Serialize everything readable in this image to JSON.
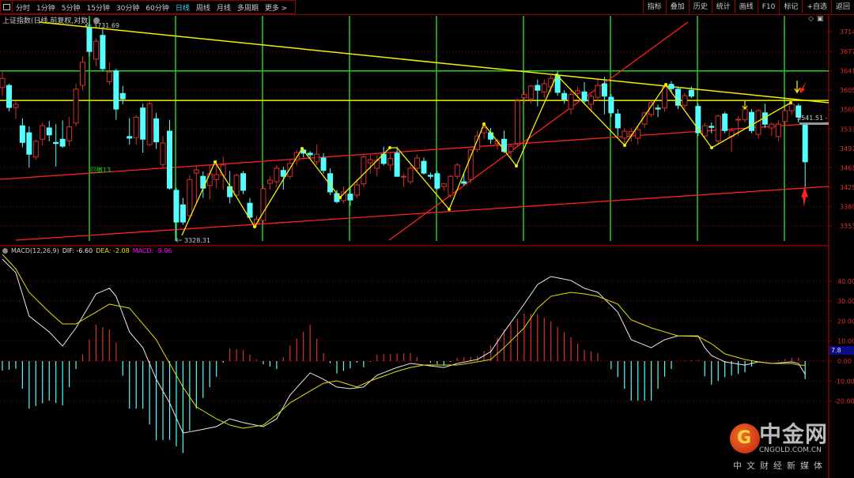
{
  "toolbar": {
    "tabs": [
      {
        "label": "分时"
      },
      {
        "label": "1分钟"
      },
      {
        "label": "5分钟"
      },
      {
        "label": "15分钟"
      },
      {
        "label": "30分钟"
      },
      {
        "label": "60分钟"
      },
      {
        "label": "日线",
        "active": true
      },
      {
        "label": "周线"
      },
      {
        "label": "月线"
      },
      {
        "label": "多周期"
      },
      {
        "label": "更多 >"
      }
    ],
    "right_buttons": [
      {
        "label": "指标"
      },
      {
        "label": "叠加"
      },
      {
        "label": "历史"
      },
      {
        "label": "统计"
      },
      {
        "label": "画线"
      },
      {
        "label": "F10"
      },
      {
        "label": "标记"
      },
      {
        "label": "+自选"
      },
      {
        "label": "返回"
      }
    ]
  },
  "chart_title": "上证指数(日线,前复权,对数)",
  "colors": {
    "up": "#d83030",
    "down": "#54ffff",
    "dif": "#e8e8e8",
    "dea": "#e0e000",
    "macd": "#ff00ff",
    "grid": "#8b0000",
    "annotation_green": "#22cc22",
    "annotation_yellow": "#f0f000",
    "annotation_red": "#ff2020"
  },
  "price_axis": {
    "ticks": [
      3714,
      3677,
      3641,
      3605,
      3569,
      3533,
      3497,
      3461,
      3425,
      3389,
      3353
    ],
    "range": [
      3714,
      3353
    ]
  },
  "macd_axis": {
    "ticks": [
      "40.00",
      "30.00",
      "20.00",
      "10.00",
      "0.00",
      "-10.00",
      "-20.00"
    ],
    "cursor_value": "7.8"
  },
  "annotations": {
    "high_label": "3731.69",
    "low_label": "3328.31",
    "retrace_label": "回撤13",
    "last_label": "3541.51 -",
    "green_level": 3641,
    "yellow_level": 3586
  },
  "macd": {
    "params": "MACD(12,26,9)",
    "dif_label": "DIF: -6.60",
    "dea_label": "DEA: -2.08",
    "macd_label": "MACD: -9.06"
  },
  "watermark": {
    "brand": "中金网",
    "url": "CNGOLD.COM.CN",
    "tagline": "中文财经新媒体"
  },
  "chart_data": {
    "type": "candlestick",
    "ohlc_order": [
      "open",
      "high",
      "low",
      "close"
    ],
    "candles": [
      [
        3610,
        3639,
        3595,
        3627
      ],
      [
        3614,
        3617,
        3566,
        3573
      ],
      [
        3573,
        3584,
        3552,
        3579
      ],
      [
        3539,
        3553,
        3499,
        3508
      ],
      [
        3526,
        3538,
        3461,
        3486
      ],
      [
        3481,
        3513,
        3476,
        3510
      ],
      [
        3514,
        3545,
        3502,
        3539
      ],
      [
        3535,
        3548,
        3510,
        3522
      ],
      [
        3508,
        3542,
        3463,
        3506
      ],
      [
        3514,
        3549,
        3498,
        3501
      ],
      [
        3511,
        3555,
        3501,
        3537
      ],
      [
        3544,
        3617,
        3538,
        3607
      ],
      [
        3614,
        3668,
        3605,
        3657
      ],
      [
        3721,
        3731.69,
        3668,
        3677
      ],
      [
        3663,
        3701,
        3650,
        3696
      ],
      [
        3707,
        3718,
        3640,
        3645
      ],
      [
        3621,
        3657,
        3615,
        3639
      ],
      [
        3641,
        3645,
        3550,
        3570
      ],
      [
        3599,
        3613,
        3579,
        3589
      ],
      [
        3519,
        3553,
        3504,
        3516
      ],
      [
        3517,
        3559,
        3504,
        3555
      ],
      [
        3572,
        3580,
        3489,
        3514
      ],
      [
        3504,
        3584,
        3501,
        3580
      ],
      [
        3552,
        3563,
        3496,
        3509
      ],
      [
        3467,
        3520,
        3461,
        3507
      ],
      [
        3529,
        3550,
        3420,
        3423
      ],
      [
        3419,
        3424,
        3328.31,
        3360
      ],
      [
        3392,
        3405,
        3355,
        3360
      ],
      [
        3372,
        3447,
        3365,
        3439
      ],
      [
        3451,
        3465,
        3395,
        3457
      ],
      [
        3445,
        3454,
        3405,
        3423
      ],
      [
        3428,
        3467,
        3402,
        3450
      ],
      [
        3439,
        3476,
        3423,
        3448
      ],
      [
        3447,
        3482,
        3420,
        3466
      ],
      [
        3426,
        3455,
        3395,
        3407
      ],
      [
        3410,
        3450,
        3405,
        3447
      ],
      [
        3450,
        3455,
        3412,
        3419
      ],
      [
        3395,
        3405,
        3365,
        3369
      ],
      [
        3357,
        3372,
        3351,
        3365
      ],
      [
        3363,
        3430,
        3355,
        3422
      ],
      [
        3432,
        3445,
        3420,
        3438
      ],
      [
        3435,
        3466,
        3425,
        3460
      ],
      [
        3456,
        3463,
        3420,
        3445
      ],
      [
        3445,
        3475,
        3440,
        3469
      ],
      [
        3475,
        3494,
        3465,
        3489
      ],
      [
        3494,
        3497,
        3480,
        3488
      ],
      [
        3488,
        3492,
        3480,
        3485
      ],
      [
        3472,
        3504,
        3466,
        3486
      ],
      [
        3479,
        3488,
        3450,
        3456
      ],
      [
        3450,
        3460,
        3410,
        3416
      ],
      [
        3413,
        3420,
        3395,
        3398
      ],
      [
        3400,
        3426,
        3395,
        3416
      ],
      [
        3412,
        3425,
        3390,
        3401
      ],
      [
        3410,
        3440,
        3405,
        3429
      ],
      [
        3431,
        3485,
        3425,
        3481
      ],
      [
        3470,
        3485,
        3450,
        3476
      ],
      [
        3460,
        3484,
        3445,
        3475
      ],
      [
        3486,
        3500,
        3465,
        3469
      ],
      [
        3466,
        3488,
        3455,
        3478
      ],
      [
        3488,
        3500,
        3445,
        3445
      ],
      [
        3444,
        3450,
        3425,
        3445
      ],
      [
        3435,
        3465,
        3430,
        3460
      ],
      [
        3460,
        3485,
        3455,
        3479
      ],
      [
        3473,
        3480,
        3448,
        3451
      ],
      [
        3447,
        3452,
        3440,
        3445
      ],
      [
        3450,
        3455,
        3420,
        3423
      ],
      [
        3426,
        3432,
        3418,
        3431
      ],
      [
        3410,
        3448,
        3405,
        3445
      ],
      [
        3445,
        3470,
        3440,
        3466
      ],
      [
        3435,
        3450,
        3428,
        3432
      ],
      [
        3439,
        3495,
        3432,
        3494
      ],
      [
        3495,
        3530,
        3490,
        3520
      ],
      [
        3526,
        3545,
        3515,
        3535
      ],
      [
        3526,
        3535,
        3505,
        3514
      ],
      [
        3506,
        3515,
        3495,
        3511
      ],
      [
        3514,
        3530,
        3488,
        3491
      ],
      [
        3491,
        3505,
        3480,
        3501
      ],
      [
        3506,
        3590,
        3500,
        3585
      ],
      [
        3591,
        3605,
        3580,
        3597
      ],
      [
        3589,
        3615,
        3580,
        3613
      ],
      [
        3614,
        3625,
        3575,
        3605
      ],
      [
        3602,
        3625,
        3590,
        3617
      ],
      [
        3611,
        3635,
        3600,
        3627
      ],
      [
        3633,
        3640,
        3595,
        3601
      ],
      [
        3599,
        3605,
        3580,
        3588
      ],
      [
        3570,
        3605,
        3560,
        3597
      ],
      [
        3599,
        3612,
        3590,
        3604
      ],
      [
        3602,
        3620,
        3580,
        3585
      ],
      [
        3579,
        3598,
        3565,
        3594
      ],
      [
        3592,
        3625,
        3585,
        3614
      ],
      [
        3617,
        3630,
        3560,
        3594
      ],
      [
        3592,
        3598,
        3555,
        3563
      ],
      [
        3561,
        3570,
        3520,
        3535
      ],
      [
        3516,
        3535,
        3500,
        3529
      ],
      [
        3523,
        3535,
        3510,
        3528
      ],
      [
        3516,
        3540,
        3505,
        3532
      ],
      [
        3542,
        3565,
        3535,
        3563
      ],
      [
        3560,
        3585,
        3555,
        3582
      ],
      [
        3572,
        3578,
        3555,
        3570
      ],
      [
        3572,
        3617,
        3565,
        3611
      ],
      [
        3616,
        3622,
        3600,
        3608
      ],
      [
        3607,
        3612,
        3570,
        3577
      ],
      [
        3577,
        3600,
        3570,
        3595
      ],
      [
        3605,
        3612,
        3590,
        3594
      ],
      [
        3575,
        3580,
        3520,
        3526
      ],
      [
        3520,
        3545,
        3515,
        3539
      ],
      [
        3538,
        3545,
        3525,
        3536
      ],
      [
        3511,
        3560,
        3505,
        3557
      ],
      [
        3561,
        3565,
        3525,
        3530
      ],
      [
        3519,
        3535,
        3490,
        3530
      ],
      [
        3550,
        3557,
        3520,
        3551
      ],
      [
        3550,
        3575,
        3545,
        3570
      ],
      [
        3564,
        3570,
        3525,
        3530
      ],
      [
        3523,
        3570,
        3515,
        3567
      ],
      [
        3563,
        3580,
        3535,
        3542
      ],
      [
        3535,
        3545,
        3520,
        3542
      ],
      [
        3519,
        3550,
        3510,
        3542
      ],
      [
        3547,
        3575,
        3540,
        3567
      ],
      [
        3567,
        3585,
        3560,
        3579
      ],
      [
        3576,
        3580,
        3545,
        3555
      ],
      [
        3542,
        3545,
        3425,
        3472
      ]
    ],
    "dif_points": [
      [
        0,
        51
      ],
      [
        2,
        44.3
      ],
      [
        4,
        22.5
      ],
      [
        7,
        14.6
      ],
      [
        9,
        7.5
      ],
      [
        11,
        16.6
      ],
      [
        14,
        33.6
      ],
      [
        16,
        36.4
      ],
      [
        17,
        32.4
      ],
      [
        19,
        14.6
      ],
      [
        21,
        6.7
      ],
      [
        23,
        -9.1
      ],
      [
        25,
        -20.9
      ],
      [
        27,
        -36
      ],
      [
        29,
        -34.8
      ],
      [
        32,
        -32.8
      ],
      [
        34,
        -28.9
      ],
      [
        36,
        -30.8
      ],
      [
        39,
        -32.8
      ],
      [
        41,
        -28.9
      ],
      [
        43,
        -17
      ],
      [
        46,
        -5.9
      ],
      [
        48,
        -9.1
      ],
      [
        50,
        -13
      ],
      [
        52,
        -13.8
      ],
      [
        54,
        -13
      ],
      [
        56,
        -7.1
      ],
      [
        59,
        -3.2
      ],
      [
        61,
        -1.2
      ],
      [
        63,
        -2
      ],
      [
        66,
        -3.2
      ],
      [
        68,
        -1.2
      ],
      [
        71,
        0.8
      ],
      [
        73,
        4.7
      ],
      [
        75,
        14.6
      ],
      [
        78,
        28.5
      ],
      [
        80,
        38.3
      ],
      [
        82,
        42.3
      ],
      [
        85,
        40.3
      ],
      [
        87,
        36.4
      ],
      [
        89,
        34.4
      ],
      [
        92,
        24.5
      ],
      [
        94,
        10.7
      ],
      [
        97,
        6.7
      ],
      [
        99,
        10.7
      ],
      [
        101,
        12.6
      ],
      [
        104,
        12.6
      ],
      [
        105,
        6.7
      ],
      [
        106,
        2.8
      ],
      [
        108,
        -0.4
      ],
      [
        111,
        -2
      ],
      [
        113,
        -0.4
      ],
      [
        115,
        -1.2
      ],
      [
        118,
        -0.4
      ],
      [
        119,
        -1.2
      ],
      [
        120,
        -6.6
      ]
    ],
    "dea_points": [
      [
        0,
        53.4
      ],
      [
        2,
        46.2
      ],
      [
        4,
        34.4
      ],
      [
        7,
        24.5
      ],
      [
        9,
        18.6
      ],
      [
        11,
        18.6
      ],
      [
        14,
        24.5
      ],
      [
        16,
        28.5
      ],
      [
        19,
        26.5
      ],
      [
        21,
        18.6
      ],
      [
        23,
        10.7
      ],
      [
        25,
        -1.2
      ],
      [
        27,
        -13
      ],
      [
        29,
        -22.9
      ],
      [
        32,
        -28.9
      ],
      [
        34,
        -32
      ],
      [
        36,
        -33.6
      ],
      [
        39,
        -32
      ],
      [
        41,
        -26.9
      ],
      [
        43,
        -20.9
      ],
      [
        46,
        -15
      ],
      [
        48,
        -11.1
      ],
      [
        50,
        -9.9
      ],
      [
        53,
        -13
      ],
      [
        55,
        -9.9
      ],
      [
        59,
        -5.1
      ],
      [
        61,
        -3.2
      ],
      [
        63,
        -2
      ],
      [
        66,
        -2
      ],
      [
        68,
        -2
      ],
      [
        71,
        -0.4
      ],
      [
        73,
        0.8
      ],
      [
        75,
        6.7
      ],
      [
        78,
        16.6
      ],
      [
        80,
        26.5
      ],
      [
        82,
        32.4
      ],
      [
        85,
        34.4
      ],
      [
        87,
        33.6
      ],
      [
        89,
        32.4
      ],
      [
        92,
        28.5
      ],
      [
        94,
        20.6
      ],
      [
        97,
        16.6
      ],
      [
        99,
        14.6
      ],
      [
        101,
        12.6
      ],
      [
        104,
        12.3
      ],
      [
        106,
        8.7
      ],
      [
        108,
        3.6
      ],
      [
        111,
        0.8
      ],
      [
        113,
        -0.4
      ],
      [
        115,
        -1.2
      ],
      [
        118,
        -1.2
      ],
      [
        119,
        -2
      ],
      [
        120,
        -2.08
      ]
    ]
  }
}
